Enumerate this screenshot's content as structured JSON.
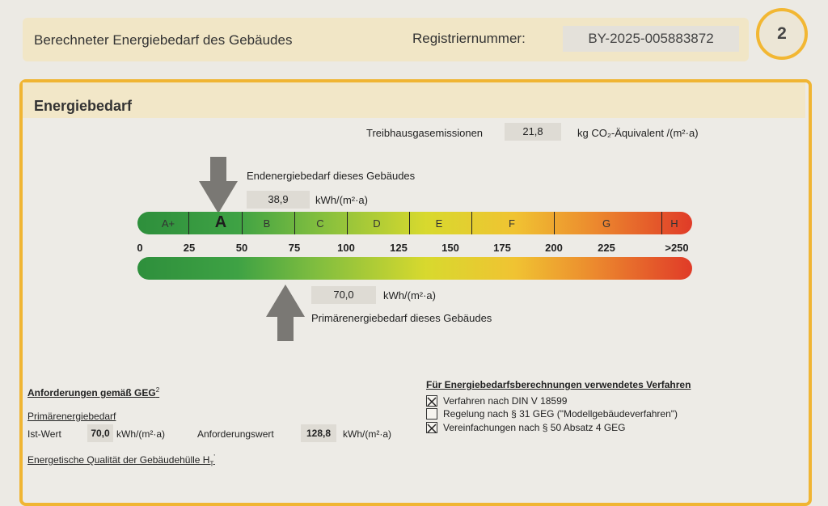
{
  "header": {
    "title": "Berechneter Energiebedarf des Gebäudes",
    "registration_label": "Registriernummer:",
    "registration_number": "BY-2025-005883872",
    "page_number": "2"
  },
  "section": {
    "title": "Energiebedarf",
    "emissions_label": "Treibhausgasemissionen",
    "emissions_value": "21,8",
    "emissions_unit": "kg CO₂-Äquivalent /(m²·a)"
  },
  "final_energy": {
    "label": "Endenergiebedarf dieses Gebäudes",
    "value": "38,9",
    "unit": "kWh/(m²·a)"
  },
  "primary_energy": {
    "label": "Primärenergiebedarf dieses Gebäudes",
    "value": "70,0",
    "unit": "kWh/(m²·a)"
  },
  "scale": {
    "classes": [
      "A+",
      "A",
      "B",
      "C",
      "D",
      "E",
      "F",
      "G",
      "H"
    ],
    "ticks": [
      "0",
      "25",
      "50",
      "75",
      "100",
      "125",
      "150",
      "175",
      "200",
      "225",
      ">250"
    ],
    "final_energy_value": 38.9,
    "primary_energy_value": 70.0,
    "max": 250
  },
  "requirements": {
    "heading": "Anforderungen gemäß GEG",
    "heading_note": "2",
    "sub_heading": "Primärenergiebedarf",
    "actual_label": "Ist-Wert",
    "actual_value": "70,0",
    "actual_unit": "kWh/(m²·a)",
    "required_label": "Anforderungswert",
    "required_value": "128,8",
    "required_unit": "kWh/(m²·a)",
    "envelope_label": "Energetische Qualität der Gebäudehülle H",
    "envelope_sub": "T",
    "envelope_note": "'"
  },
  "method": {
    "heading": "Für Energiebedarfsberechnungen verwendetes Verfahren",
    "options": [
      {
        "label": "Verfahren nach DIN V 18599",
        "checked": true
      },
      {
        "label": "Regelung nach § 31 GEG (\"Modellgebäudeverfahren\")",
        "checked": false
      },
      {
        "label": "Vereinfachungen nach § 50 Absatz 4 GEG",
        "checked": true
      }
    ]
  }
}
